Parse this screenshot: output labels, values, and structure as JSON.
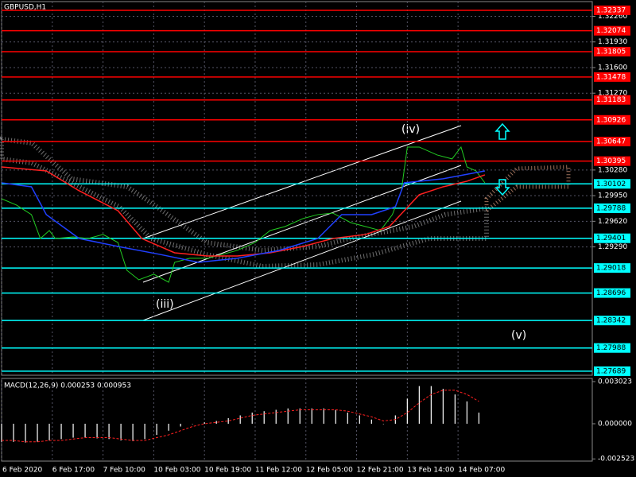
{
  "chart_data": {
    "type": "line",
    "title": "GBPUSD,H1",
    "annotations": [
      "(iv)",
      "(iii)",
      "(v)"
    ],
    "xlim": [
      0,
      198
    ],
    "xticks": [
      {
        "value": 0,
        "label": "6 Feb 2020"
      },
      {
        "value": 17,
        "label": "6 Feb 17:00"
      },
      {
        "value": 34,
        "label": "7 Feb 10:00"
      },
      {
        "value": 51,
        "label": "10 Feb 03:00"
      },
      {
        "value": 68,
        "label": "10 Feb 19:00"
      },
      {
        "value": 85,
        "label": "11 Feb 12:00"
      },
      {
        "value": 102,
        "label": "12 Feb 05:00"
      },
      {
        "value": 119,
        "label": "12 Feb 21:00"
      },
      {
        "value": 136,
        "label": "13 Feb 14:00"
      },
      {
        "value": 153,
        "label": "14 Feb 07:00"
      }
    ],
    "ylim": [
      1.27637,
      1.3247
    ],
    "yticks": [
      {
        "value": 1.3226,
        "label": "1.32260"
      },
      {
        "value": 1.3193,
        "label": "1.31930"
      },
      {
        "value": 1.316,
        "label": "1.31600"
      },
      {
        "value": 1.3127,
        "label": "1.31270"
      },
      {
        "value": 1.3028,
        "label": "1.30280"
      },
      {
        "value": 1.2995,
        "label": "1.29950"
      },
      {
        "value": 1.2962,
        "label": "1.29620"
      },
      {
        "value": 1.2929,
        "label": "1.29290"
      }
    ],
    "grid": true,
    "levels": [
      {
        "value": 1.32337,
        "color": "#ff0000"
      },
      {
        "value": 1.32074,
        "color": "#ff0000"
      },
      {
        "value": 1.31805,
        "color": "#ff0000"
      },
      {
        "value": 1.31478,
        "color": "#ff0000"
      },
      {
        "value": 1.31183,
        "color": "#ff0000"
      },
      {
        "value": 1.30926,
        "color": "#ff0000"
      },
      {
        "value": 1.30647,
        "color": "#ff0000"
      },
      {
        "value": 1.30395,
        "color": "#ff0000"
      },
      {
        "value": 1.30102,
        "color": "#00ffff"
      },
      {
        "value": 1.29788,
        "color": "#00ffff"
      },
      {
        "value": 1.29401,
        "color": "#00ffff"
      },
      {
        "value": 1.29018,
        "color": "#00ffff"
      },
      {
        "value": 1.28696,
        "color": "#00ffff"
      },
      {
        "value": 1.28342,
        "color": "#00ffff"
      },
      {
        "value": 1.27988,
        "color": "#00ffff"
      },
      {
        "value": 1.27689,
        "color": "#00ffff"
      }
    ],
    "series": [
      {
        "color": "#22cc22",
        "x": [
          0,
          5,
          10,
          13,
          16,
          18,
          24,
          29,
          34,
          39,
          42,
          46,
          51,
          56,
          58,
          63,
          69,
          74,
          79,
          85,
          90,
          95,
          101,
          106,
          111,
          117,
          122,
          127,
          131,
          134,
          136,
          140,
          146,
          151,
          154,
          156,
          159,
          162
        ],
        "values": [
          1.2991,
          1.29829,
          1.29706,
          1.29398,
          1.29501,
          1.29398,
          1.29419,
          1.29398,
          1.2945,
          1.29347,
          1.28989,
          1.28866,
          1.28938,
          1.28835,
          1.29091,
          1.29143,
          1.29143,
          1.29194,
          1.29245,
          1.29347,
          1.29501,
          1.29552,
          1.29655,
          1.29706,
          1.29726,
          1.29603,
          1.29552,
          1.29501,
          1.29706,
          1.30013,
          1.30576,
          1.30576,
          1.30474,
          1.30423,
          1.30576,
          1.3032,
          1.30269,
          1.30115
        ]
      },
      {
        "color": "#ff2020",
        "x": [
          0,
          15,
          26,
          39,
          47,
          58,
          69,
          79,
          90,
          101,
          111,
          122,
          130,
          135,
          140,
          148,
          156,
          162
        ],
        "values": [
          1.3032,
          1.30269,
          1.30013,
          1.29757,
          1.29398,
          1.29214,
          1.29173,
          1.29173,
          1.29214,
          1.29296,
          1.29398,
          1.2945,
          1.29552,
          1.29757,
          1.29962,
          1.30064,
          1.30136,
          1.30218
        ]
      },
      {
        "color": "#2040ff",
        "x": [
          0,
          10,
          15,
          26,
          39,
          53,
          66,
          79,
          93,
          106,
          114,
          124,
          132,
          135,
          148,
          162
        ],
        "values": [
          1.30115,
          1.30064,
          1.29706,
          1.29398,
          1.29296,
          1.29194,
          1.29091,
          1.29143,
          1.29245,
          1.29398,
          1.29706,
          1.29706,
          1.29808,
          1.30115,
          1.30167,
          1.30269
        ]
      }
    ],
    "macd": {
      "label": "MACD(12,26,9) 0.000253 0.000953",
      "y2lim": [
        -0.00268,
        0.00325
      ],
      "y2ticks": [
        0.003023,
        {
          "value": 0,
          "label": "0.000000"
        },
        -0.002523
      ],
      "x": [
        0,
        4,
        8,
        12,
        16,
        20,
        24,
        28,
        32,
        36,
        40,
        44,
        48,
        52,
        56,
        60,
        64,
        68,
        72,
        76,
        80,
        84,
        88,
        92,
        96,
        100,
        104,
        108,
        112,
        116,
        120,
        124,
        128,
        132,
        136,
        140,
        144,
        148,
        152,
        156,
        160
      ],
      "values": [
        -0.0013,
        -0.0013,
        -0.00135,
        -0.0013,
        -0.0012,
        -0.0011,
        -0.001,
        -0.001,
        -0.00105,
        -0.0011,
        -0.0012,
        -0.00125,
        -0.0011,
        -0.0008,
        -0.0005,
        -0.0002,
        0,
        0.0001,
        0.0002,
        0.0004,
        0.0006,
        0.0008,
        0.0009,
        0.001,
        0.0011,
        0.0011,
        0.0011,
        0.0011,
        0.001,
        0.0008,
        0.0006,
        0.0003,
        0,
        0.0006,
        0.0018,
        0.0027,
        0.0027,
        0.0025,
        0.0021,
        0.0016,
        0.0008
      ],
      "signal": [
        -0.0012,
        -0.0012,
        -0.0013,
        -0.0013,
        -0.0012,
        -0.0012,
        -0.0011,
        -0.001,
        -0.001,
        -0.001,
        -0.0011,
        -0.0012,
        -0.0012,
        -0.001,
        -0.0008,
        -0.0005,
        -0.0002,
        0,
        0.0001,
        0.0002,
        0.0004,
        0.0006,
        0.0007,
        0.0008,
        0.0009,
        0.001,
        0.001,
        0.001,
        0.001,
        0.0009,
        0.0007,
        0.0005,
        0.0002,
        0.0003,
        0.0008,
        0.0015,
        0.0021,
        0.0024,
        0.0024,
        0.0021,
        0.0016
      ],
      "color": "#ffffff",
      "signal_color": "#ff2020"
    }
  }
}
